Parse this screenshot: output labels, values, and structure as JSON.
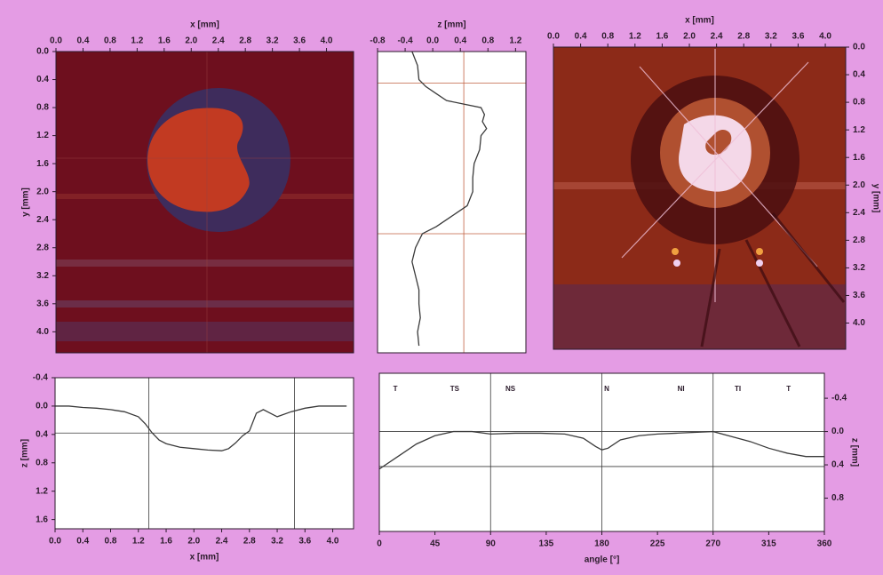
{
  "chart_data": [
    {
      "type": "image",
      "xlabel": "x [mm]",
      "ylabel": "y [mm]",
      "x_axis_side": "top",
      "y_axis_side": "left",
      "xlim": [
        0,
        4.4
      ],
      "ylim": [
        0,
        4.3
      ],
      "y_inverted": true,
      "xticks": [
        {
          "value": 0,
          "label": "0.0"
        },
        0.4,
        0.8,
        1.2,
        1.6,
        {
          "value": 2,
          "label": "2.0"
        },
        2.4,
        2.8,
        3.2,
        3.6,
        {
          "value": 4,
          "label": "4.0"
        }
      ],
      "yticks": [
        {
          "value": 0,
          "label": "0.0"
        },
        0.4,
        0.8,
        1.2,
        1.6,
        {
          "value": 2,
          "label": "2.0"
        },
        2.4,
        2.8,
        3.2,
        3.6,
        {
          "value": 4,
          "label": "4.0"
        }
      ]
    },
    {
      "type": "line",
      "xlabel": "z [mm]",
      "x_axis_side": "top",
      "y_axis_side": "none",
      "xlim": [
        -0.8,
        1.35
      ],
      "ylim": [
        0,
        4.3
      ],
      "y_inverted": true,
      "xticks": [
        -0.8,
        -0.4,
        {
          "value": 0,
          "label": "0.0"
        },
        0.4,
        0.8,
        1.2
      ],
      "color": "#3a3a3a",
      "guide_color": "#c06040",
      "series": [
        {
          "x": [
            -0.3,
            -0.22,
            -0.2,
            -0.1,
            0.05,
            0.2,
            0.7,
            0.75,
            0.72,
            0.78,
            0.7,
            0.68,
            0.6,
            0.58,
            0.58,
            0.5,
            0.35,
            0.2,
            0.05,
            -0.15,
            -0.25,
            -0.3,
            -0.25,
            -0.2,
            -0.2,
            -0.18,
            -0.22,
            -0.2
          ],
          "y": [
            0,
            0.2,
            0.4,
            0.5,
            0.6,
            0.7,
            0.8,
            0.9,
            1.0,
            1.1,
            1.2,
            1.4,
            1.6,
            1.8,
            2.0,
            2.2,
            2.3,
            2.4,
            2.5,
            2.6,
            2.8,
            3.0,
            3.2,
            3.4,
            3.6,
            3.8,
            4.0,
            4.2
          ]
        }
      ],
      "guides": {
        "vlines": [
          0.45
        ],
        "hlines": [
          0.45,
          2.6
        ]
      }
    },
    {
      "type": "image",
      "xlabel": "x [mm]",
      "ylabel": "y [mm]",
      "x_axis_side": "top",
      "y_axis_side": "right",
      "xlim": [
        0,
        4.3
      ],
      "ylim": [
        0,
        4.38
      ],
      "y_inverted": true,
      "xticks": [
        {
          "value": 0,
          "label": "0.0"
        },
        0.4,
        0.8,
        1.2,
        1.6,
        {
          "value": 2,
          "label": "2.0"
        },
        2.4,
        2.8,
        3.2,
        3.6,
        {
          "value": 4,
          "label": "4.0"
        }
      ],
      "yticks": [
        {
          "value": 0,
          "label": "0.0"
        },
        0.4,
        0.8,
        1.2,
        1.6,
        {
          "value": 2,
          "label": "2.0"
        },
        2.4,
        2.8,
        3.2,
        3.6,
        {
          "value": 4,
          "label": "4.0"
        }
      ]
    },
    {
      "type": "line",
      "xlabel": "x [mm]",
      "ylabel": "z [mm]",
      "x_axis_side": "bottom",
      "y_axis_side": "left",
      "xlim": [
        0,
        4.3
      ],
      "ylim": [
        -0.4,
        1.73
      ],
      "y_inverted": true,
      "xticks": [
        {
          "value": 0,
          "label": "0.0"
        },
        0.4,
        0.8,
        1.2,
        1.6,
        {
          "value": 2,
          "label": "2.0"
        },
        2.4,
        2.8,
        3.2,
        3.6,
        {
          "value": 4,
          "label": "4.0"
        }
      ],
      "yticks": [
        -0.4,
        {
          "value": 0,
          "label": "0.0"
        },
        0.4,
        0.8,
        1.2,
        1.6
      ],
      "color": "#3a3a3a",
      "guide_color": "#3a3a3a",
      "series": [
        {
          "x": [
            0,
            0.2,
            0.4,
            0.6,
            0.8,
            1.0,
            1.2,
            1.3,
            1.4,
            1.5,
            1.6,
            1.8,
            2.0,
            2.2,
            2.4,
            2.5,
            2.6,
            2.7,
            2.8,
            2.9,
            3.0,
            3.1,
            3.2,
            3.4,
            3.6,
            3.8,
            4.0,
            4.2
          ],
          "y": [
            0.0,
            0.0,
            0.02,
            0.03,
            0.05,
            0.08,
            0.15,
            0.25,
            0.38,
            0.48,
            0.53,
            0.58,
            0.6,
            0.62,
            0.63,
            0.6,
            0.52,
            0.42,
            0.35,
            0.1,
            0.05,
            0.1,
            0.15,
            0.08,
            0.03,
            0.0,
            0.0,
            0.0
          ]
        }
      ],
      "guides": {
        "vlines": [
          1.35,
          3.45
        ],
        "hlines": [
          0.38
        ]
      }
    },
    {
      "type": "line",
      "xlabel": "angle [°]",
      "ylabel": "z [mm]",
      "x_axis_side": "bottom",
      "y_axis_side": "right",
      "xlim": [
        0,
        360
      ],
      "ylim": [
        -0.7,
        1.2
      ],
      "y_inverted": true,
      "xticks": [
        0,
        45,
        90,
        135,
        180,
        225,
        270,
        315,
        360
      ],
      "yticks": [
        -0.4,
        {
          "value": 0,
          "label": "0.0"
        },
        0.4,
        0.8
      ],
      "color": "#3a3a3a",
      "guide_color": "#3a3a3a",
      "series": [
        {
          "x": [
            0,
            15,
            30,
            45,
            60,
            75,
            90,
            110,
            130,
            150,
            165,
            175,
            180,
            185,
            195,
            210,
            225,
            240,
            255,
            270,
            285,
            300,
            315,
            330,
            345,
            360
          ],
          "y": [
            0.45,
            0.3,
            0.15,
            0.05,
            0.0,
            0.0,
            0.03,
            0.02,
            0.02,
            0.03,
            0.08,
            0.18,
            0.22,
            0.2,
            0.1,
            0.05,
            0.03,
            0.02,
            0.01,
            0.0,
            0.06,
            0.12,
            0.2,
            0.26,
            0.3,
            0.3
          ]
        }
      ],
      "guides": {
        "vlines": [
          90,
          180,
          270
        ],
        "hlines": [
          0.0,
          0.42
        ]
      },
      "annotations": [
        {
          "text": "T",
          "x": 13
        },
        {
          "text": "TS",
          "x": 61
        },
        {
          "text": "NS",
          "x": 106
        },
        {
          "text": "N",
          "x": 184
        },
        {
          "text": "NI",
          "x": 244
        },
        {
          "text": "TI",
          "x": 290
        },
        {
          "text": "T",
          "x": 331
        }
      ]
    }
  ]
}
